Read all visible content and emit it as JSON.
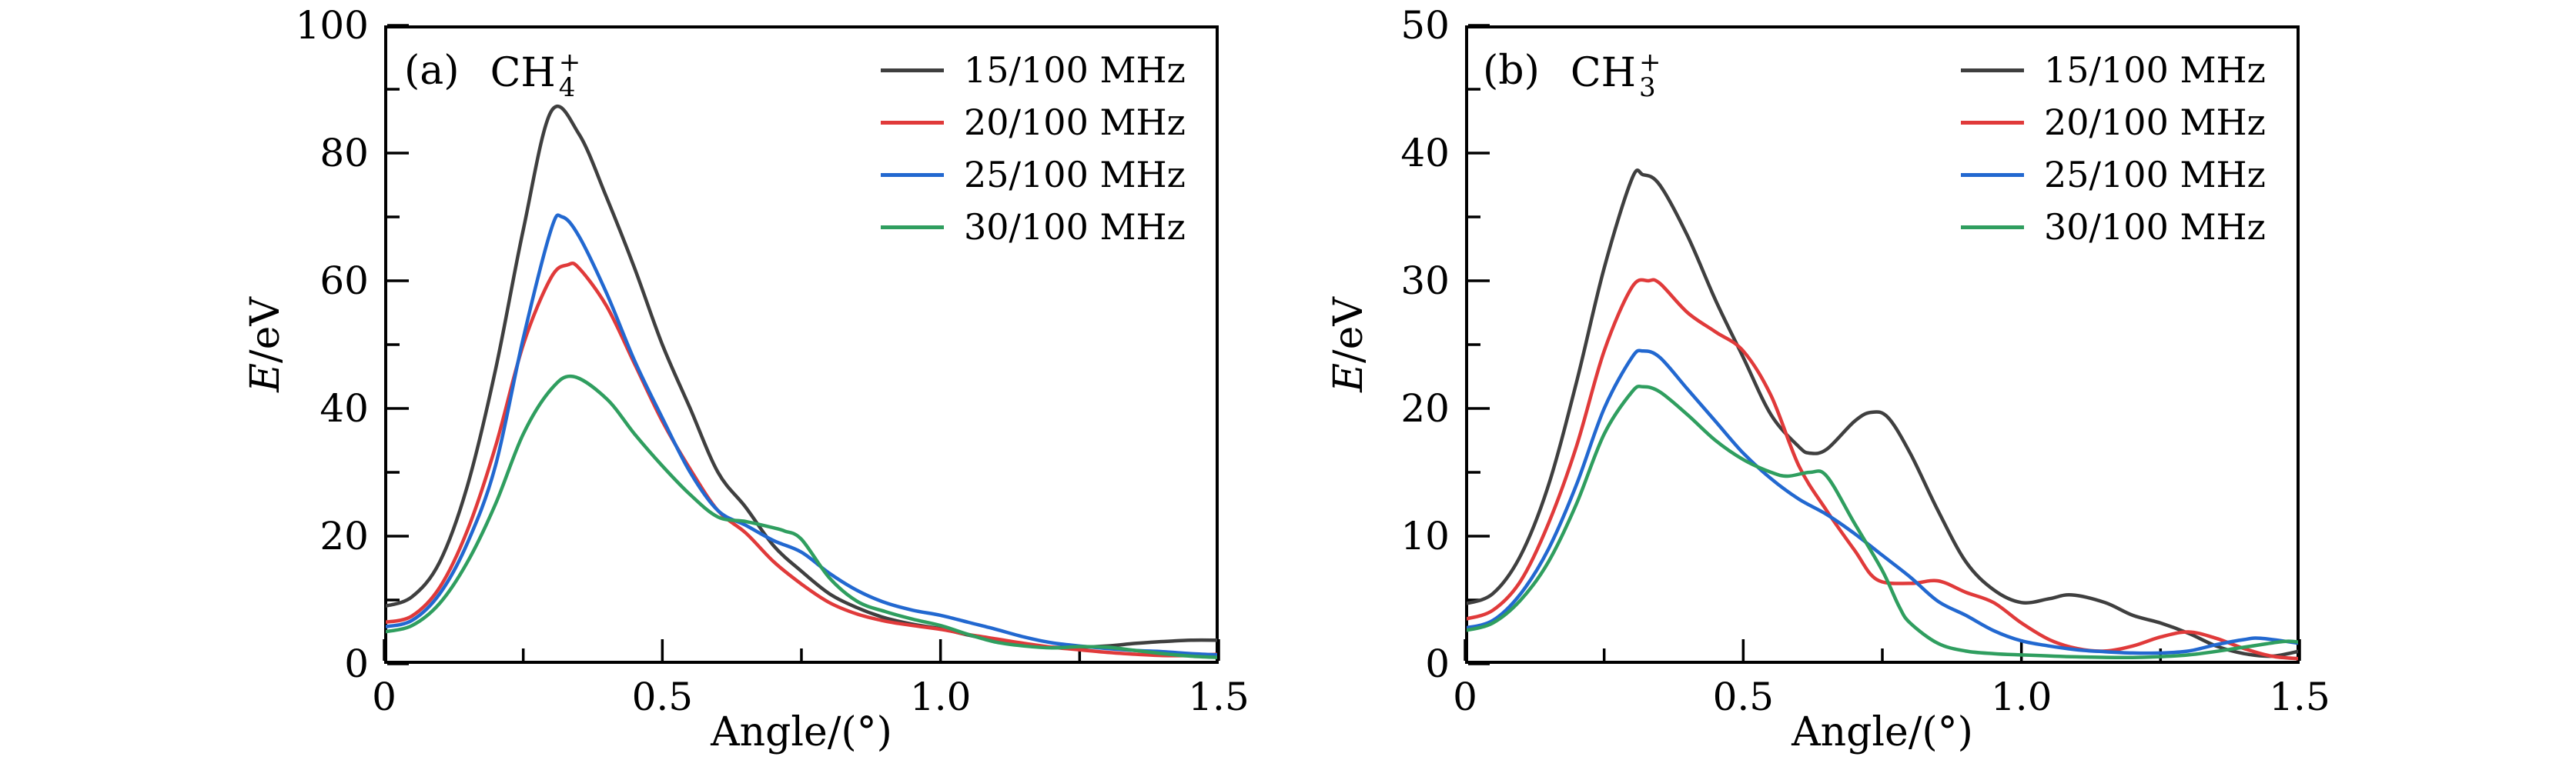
{
  "figure": {
    "background": "#ffffff",
    "axis_color": "#000000"
  },
  "legend": {
    "position": "top-right-inside",
    "entries": [
      {
        "label": "15/100 MHz",
        "color": "#3f3f3f"
      },
      {
        "label": "20/100 MHz",
        "color": "#e03a3a"
      },
      {
        "label": "25/100 MHz",
        "color": "#2268d0"
      },
      {
        "label": "30/100 MHz",
        "color": "#2f9e5f"
      }
    ]
  },
  "panel_a": {
    "tag": "(a)",
    "molecule": {
      "base": "CH",
      "sub": "4",
      "sup": "+"
    },
    "ylabel_italic": "E",
    "ylabel_rest": "/eV",
    "xlabel": "Angle/(°)"
  },
  "panel_b": {
    "tag": "(b)",
    "molecule": {
      "base": "CH",
      "sub": "3",
      "sup": "+"
    },
    "ylabel_italic": "E",
    "ylabel_rest": "/eV",
    "xlabel": "Angle/(°)"
  },
  "chart_data": [
    {
      "id": "a",
      "type": "line",
      "title": "(a) CH4+",
      "xlabel": "Angle/(°)",
      "ylabel": "E/eV",
      "xlim": [
        0,
        1.5
      ],
      "ylim": [
        0,
        100
      ],
      "grid": false,
      "legend_position": "top-right",
      "x_major_ticks": [
        0,
        0.5,
        1.0,
        1.5
      ],
      "x_tick_labels": [
        "0",
        "0.5",
        "1.0",
        "1.5"
      ],
      "x_minor_ticks": [
        0.25,
        0.75,
        1.25
      ],
      "y_major_ticks": [
        0,
        20,
        40,
        60,
        80,
        100
      ],
      "y_tick_labels": [
        "0",
        "20",
        "40",
        "60",
        "80",
        "100"
      ],
      "y_minor_ticks": [
        10,
        30,
        50,
        70,
        90
      ],
      "series": [
        {
          "name": "15/100 MHz",
          "color": "#3f3f3f",
          "x": [
            0,
            0.05,
            0.1,
            0.15,
            0.2,
            0.25,
            0.3,
            0.35,
            0.4,
            0.45,
            0.5,
            0.55,
            0.6,
            0.65,
            0.7,
            0.75,
            0.8,
            0.85,
            0.9,
            0.95,
            1.0,
            1.05,
            1.1,
            1.15,
            1.2,
            1.25,
            1.3,
            1.35,
            1.4,
            1.45,
            1.5
          ],
          "y": [
            9,
            10.5,
            16,
            28,
            46,
            68,
            86.5,
            83,
            73,
            62,
            50,
            40,
            30,
            24.5,
            18.5,
            14.5,
            11,
            8.8,
            7.2,
            6.2,
            5.5,
            4.5,
            3.6,
            3.0,
            2.6,
            2.6,
            2.8,
            3.2,
            3.5,
            3.7,
            3.7
          ]
        },
        {
          "name": "20/100 MHz",
          "color": "#e03a3a",
          "x": [
            0,
            0.05,
            0.1,
            0.15,
            0.2,
            0.25,
            0.3,
            0.33,
            0.35,
            0.4,
            0.45,
            0.5,
            0.55,
            0.6,
            0.65,
            0.7,
            0.75,
            0.8,
            0.85,
            0.9,
            0.95,
            1.0,
            1.05,
            1.1,
            1.15,
            1.2,
            1.25,
            1.3,
            1.35,
            1.4,
            1.45,
            1.5
          ],
          "y": [
            6.5,
            7.5,
            12,
            21,
            34,
            50,
            60.5,
            62.5,
            62,
            56,
            47,
            38,
            30.5,
            24,
            20.5,
            16,
            12.5,
            9.6,
            7.8,
            6.7,
            6.0,
            5.4,
            4.6,
            3.9,
            3.2,
            2.6,
            2.2,
            1.8,
            1.5,
            1.3,
            1.3,
            1.5
          ]
        },
        {
          "name": "25/100 MHz",
          "color": "#2268d0",
          "x": [
            0,
            0.05,
            0.1,
            0.15,
            0.2,
            0.25,
            0.3,
            0.32,
            0.35,
            0.4,
            0.45,
            0.5,
            0.55,
            0.6,
            0.65,
            0.7,
            0.75,
            0.8,
            0.85,
            0.9,
            0.95,
            1.0,
            1.05,
            1.1,
            1.15,
            1.2,
            1.25,
            1.3,
            1.35,
            1.4,
            1.45,
            1.5
          ],
          "y": [
            5.8,
            6.8,
            11,
            19,
            31,
            51,
            68,
            70,
            67,
            58,
            47.5,
            38.5,
            30,
            24,
            21.7,
            19.3,
            17.5,
            14.2,
            11.5,
            9.6,
            8.4,
            7.6,
            6.5,
            5.4,
            4.2,
            3.3,
            2.8,
            2.4,
            2.1,
            1.9,
            1.6,
            1.4
          ]
        },
        {
          "name": "30/100 MHz",
          "color": "#2f9e5f",
          "x": [
            0,
            0.05,
            0.1,
            0.15,
            0.2,
            0.25,
            0.3,
            0.34,
            0.4,
            0.45,
            0.5,
            0.55,
            0.6,
            0.65,
            0.7,
            0.72,
            0.75,
            0.8,
            0.85,
            0.9,
            0.95,
            1.0,
            1.05,
            1.1,
            1.15,
            1.2,
            1.25,
            1.3,
            1.35,
            1.4,
            1.45,
            1.5
          ],
          "y": [
            5,
            6,
            9.5,
            16,
            25,
            36,
            43,
            45,
            41.5,
            36,
            31,
            26.5,
            23,
            22.3,
            21.3,
            20.8,
            19.5,
            13.5,
            9.8,
            8.2,
            7.0,
            6.0,
            4.6,
            3.4,
            2.8,
            2.5,
            2.7,
            2.6,
            2.1,
            1.6,
            1.2,
            1.0
          ]
        }
      ]
    },
    {
      "id": "b",
      "type": "line",
      "title": "(b) CH3+",
      "xlabel": "Angle/(°)",
      "ylabel": "E/eV",
      "xlim": [
        0,
        1.5
      ],
      "ylim": [
        0,
        50
      ],
      "grid": false,
      "legend_position": "top-right",
      "x_major_ticks": [
        0,
        0.5,
        1.0,
        1.5
      ],
      "x_tick_labels": [
        "0",
        "0.5",
        "1.0",
        "1.5"
      ],
      "x_minor_ticks": [
        0.25,
        0.75,
        1.25
      ],
      "y_major_ticks": [
        0,
        10,
        20,
        30,
        40,
        50
      ],
      "y_tick_labels": [
        "0",
        "10",
        "20",
        "30",
        "40",
        "50"
      ],
      "y_minor_ticks": [
        5,
        15,
        25,
        35,
        45
      ],
      "series": [
        {
          "name": "15/100 MHz",
          "color": "#3f3f3f",
          "x": [
            0,
            0.05,
            0.1,
            0.15,
            0.2,
            0.25,
            0.3,
            0.32,
            0.35,
            0.4,
            0.45,
            0.5,
            0.55,
            0.6,
            0.62,
            0.65,
            0.7,
            0.73,
            0.76,
            0.8,
            0.85,
            0.9,
            0.95,
            1.0,
            1.05,
            1.09,
            1.15,
            1.2,
            1.25,
            1.3,
            1.35,
            1.4,
            1.45,
            1.5
          ],
          "y": [
            4.7,
            5.5,
            8.5,
            14,
            22,
            31,
            38,
            38.3,
            37.5,
            33.5,
            28.5,
            24,
            19.5,
            17,
            16.5,
            16.8,
            19,
            19.7,
            19.3,
            16.5,
            12,
            8,
            5.8,
            4.8,
            5.1,
            5.4,
            4.8,
            3.8,
            3.2,
            2.4,
            1.4,
            0.8,
            0.6,
            1.0
          ]
        },
        {
          "name": "20/100 MHz",
          "color": "#e03a3a",
          "x": [
            0,
            0.05,
            0.1,
            0.15,
            0.2,
            0.25,
            0.3,
            0.33,
            0.35,
            0.4,
            0.45,
            0.5,
            0.55,
            0.6,
            0.65,
            0.7,
            0.74,
            0.8,
            0.85,
            0.9,
            0.95,
            1.0,
            1.05,
            1.1,
            1.15,
            1.2,
            1.25,
            1.3,
            1.35,
            1.4,
            1.45,
            1.5
          ],
          "y": [
            3.5,
            4.2,
            6.5,
            11,
            17,
            24.5,
            29.5,
            30,
            29.8,
            27.5,
            26,
            24.5,
            21,
            15.5,
            12,
            8.9,
            6.6,
            6.3,
            6.5,
            5.6,
            4.8,
            3.2,
            1.9,
            1.2,
            1.0,
            1.4,
            2.1,
            2.5,
            2.0,
            1.2,
            0.6,
            0.4
          ]
        },
        {
          "name": "25/100 MHz",
          "color": "#2268d0",
          "x": [
            0,
            0.05,
            0.1,
            0.15,
            0.2,
            0.25,
            0.3,
            0.32,
            0.35,
            0.4,
            0.45,
            0.5,
            0.55,
            0.6,
            0.65,
            0.7,
            0.75,
            0.8,
            0.85,
            0.9,
            0.95,
            1.0,
            1.05,
            1.1,
            1.15,
            1.2,
            1.25,
            1.3,
            1.35,
            1.4,
            1.43,
            1.5
          ],
          "y": [
            2.8,
            3.4,
            5.5,
            9,
            14,
            20,
            24,
            24.5,
            24,
            21.5,
            19,
            16.5,
            14.5,
            12.9,
            11.7,
            10.2,
            8.5,
            6.8,
            4.9,
            3.8,
            2.6,
            1.8,
            1.4,
            1.1,
            0.95,
            0.85,
            0.85,
            1.0,
            1.5,
            1.9,
            2.0,
            1.6
          ]
        },
        {
          "name": "30/100 MHz",
          "color": "#2f9e5f",
          "x": [
            0,
            0.05,
            0.1,
            0.15,
            0.2,
            0.25,
            0.3,
            0.32,
            0.35,
            0.4,
            0.45,
            0.5,
            0.55,
            0.58,
            0.62,
            0.65,
            0.7,
            0.75,
            0.78,
            0.8,
            0.85,
            0.9,
            0.95,
            1.0,
            1.1,
            1.2,
            1.3,
            1.4,
            1.47,
            1.5
          ],
          "y": [
            2.6,
            3.2,
            5,
            8,
            12.5,
            18,
            21.3,
            21.7,
            21.3,
            19.5,
            17.5,
            16,
            15,
            14.7,
            15.0,
            14.7,
            11,
            7.3,
            4.5,
            3.2,
            1.6,
            1.0,
            0.8,
            0.7,
            0.55,
            0.5,
            0.7,
            1.3,
            1.75,
            1.7
          ]
        }
      ]
    }
  ]
}
